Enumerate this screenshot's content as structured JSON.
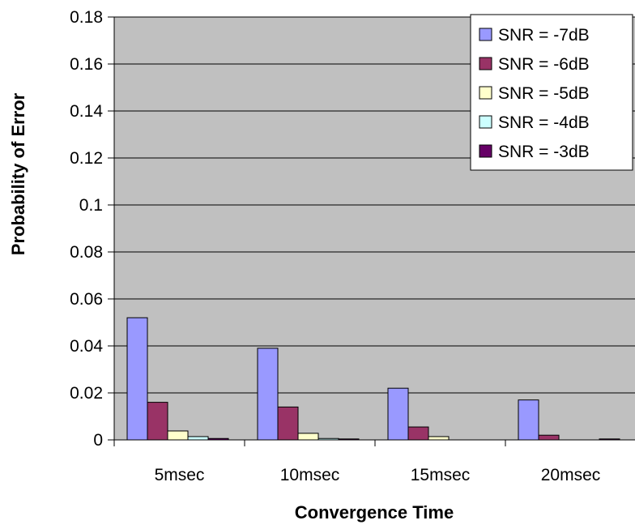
{
  "chart_data": {
    "type": "bar",
    "title": "",
    "xlabel": "Convergence Time",
    "ylabel": "Probability of Error",
    "categories": [
      "5msec",
      "10msec",
      "15msec",
      "20msec"
    ],
    "ylim": [
      0,
      0.18
    ],
    "yticks": [
      "0",
      "0.02",
      "0.04",
      "0.06",
      "0.08",
      "0.1",
      "0.12",
      "0.14",
      "0.16",
      "0.18"
    ],
    "yticks_values": [
      0,
      0.02,
      0.04,
      0.06,
      0.08,
      0.1,
      0.12,
      0.14,
      0.16,
      0.18
    ],
    "grid": true,
    "legend_position": "top-right",
    "plot_background": "#c0c0c0",
    "series": [
      {
        "name": "SNR = -7dB",
        "color": "#9999ff",
        "values": [
          0.052,
          0.039,
          0.022,
          0.017
        ]
      },
      {
        "name": "SNR = -6dB",
        "color": "#993366",
        "values": [
          0.016,
          0.014,
          0.0055,
          0.002
        ]
      },
      {
        "name": "SNR = -5dB",
        "color": "#ffffcc",
        "values": [
          0.0038,
          0.0028,
          0.0014,
          0
        ]
      },
      {
        "name": "SNR = -4dB",
        "color": "#ccffff",
        "values": [
          0.0014,
          0.0006,
          0,
          0
        ]
      },
      {
        "name": "SNR = -3dB",
        "color": "#660066",
        "values": [
          0.0006,
          0.0004,
          0,
          0.0004
        ]
      }
    ]
  }
}
